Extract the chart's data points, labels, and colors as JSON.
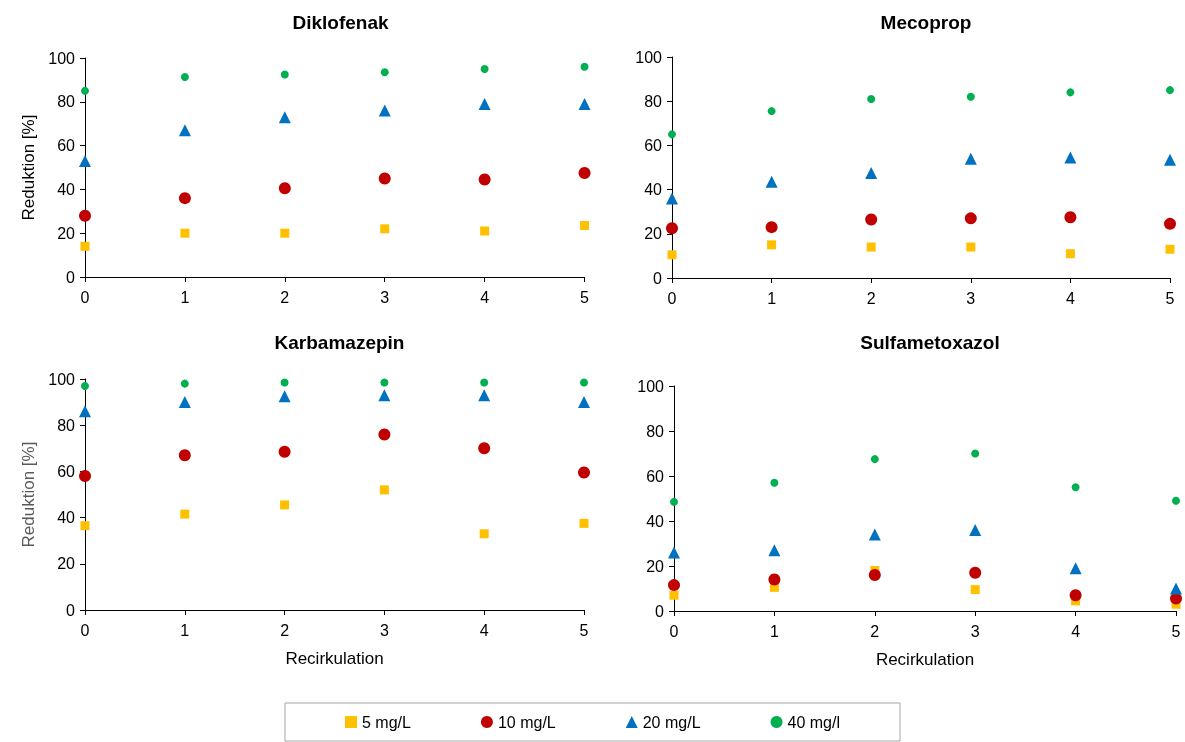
{
  "chart_data": [
    {
      "type": "scatter",
      "title": "Diklofenak",
      "ylabel": "Reduktion [%]",
      "x": [
        0,
        1,
        2,
        3,
        4,
        5
      ],
      "xlim": [
        0,
        5
      ],
      "xticks": [
        0,
        1,
        2,
        3,
        4,
        5
      ],
      "ylim": [
        0,
        100
      ],
      "yticks": [
        0,
        20,
        40,
        60,
        80,
        100
      ],
      "grid": false,
      "series": [
        {
          "color": "#ffc000",
          "marker": "square",
          "values": [
            14,
            20,
            20,
            22,
            21,
            23.5
          ]
        },
        {
          "color": "#c00000",
          "marker": "circle",
          "values": [
            28,
            36,
            40.5,
            45,
            44.5,
            47.5
          ]
        },
        {
          "color": "#0070c0",
          "marker": "triangle",
          "values": [
            53,
            67,
            73,
            76,
            79,
            79
          ]
        },
        {
          "color": "#00b050",
          "marker": "circle",
          "values": [
            85,
            91.3,
            92.5,
            93.5,
            95,
            96
          ]
        }
      ]
    },
    {
      "type": "scatter",
      "title": "Mecoprop",
      "x": [
        0,
        1,
        2,
        3,
        4,
        5
      ],
      "xlim": [
        0,
        5
      ],
      "xticks": [
        0,
        1,
        2,
        3,
        4,
        5
      ],
      "ylim": [
        0,
        100
      ],
      "yticks": [
        0,
        20,
        40,
        60,
        80,
        100
      ],
      "grid": false,
      "series": [
        {
          "color": "#ffc000",
          "marker": "square",
          "values": [
            10.5,
            15,
            14,
            14,
            11,
            13
          ]
        },
        {
          "color": "#c00000",
          "marker": "circle",
          "values": [
            22.5,
            23,
            26.5,
            27,
            27.5,
            24.5
          ]
        },
        {
          "color": "#0070c0",
          "marker": "triangle",
          "values": [
            36,
            43.5,
            47.5,
            54,
            54.5,
            53.5
          ]
        },
        {
          "color": "#00b050",
          "marker": "circle",
          "values": [
            65,
            75.5,
            81,
            82,
            84,
            85
          ]
        }
      ]
    },
    {
      "type": "scatter",
      "title": "Karbamazepin",
      "xlabel": "Recirkulation",
      "ylabel": "Reduktion [%]",
      "x": [
        0,
        1,
        2,
        3,
        4,
        5
      ],
      "xlim": [
        0,
        5
      ],
      "xticks": [
        0,
        1,
        2,
        3,
        4,
        5
      ],
      "ylim": [
        0,
        100
      ],
      "yticks": [
        0,
        20,
        40,
        60,
        80,
        100
      ],
      "grid": false,
      "legend": "bottom",
      "series": [
        {
          "name": "5 mg/L",
          "color": "#ffc000",
          "marker": "square",
          "values": [
            36.5,
            41.5,
            45.5,
            52,
            33,
            37.5
          ]
        },
        {
          "name": "10 mg/L",
          "color": "#c00000",
          "marker": "circle",
          "values": [
            58,
            67,
            68.5,
            76,
            70,
            59.5
          ]
        },
        {
          "name": "20 mg/L",
          "color": "#0070c0",
          "marker": "triangle",
          "values": [
            86,
            90,
            92.5,
            93,
            93,
            90
          ]
        },
        {
          "name": "40 mg/l",
          "color": "#00b050",
          "marker": "circle",
          "values": [
            97,
            98,
            98.5,
            98.5,
            98.5,
            98.5
          ]
        }
      ]
    },
    {
      "type": "scatter",
      "title": "Sulfametoxazol",
      "xlabel": "Recirkulation",
      "x": [
        0,
        1,
        2,
        3,
        4,
        5
      ],
      "xlim": [
        0,
        5
      ],
      "xticks": [
        0,
        1,
        2,
        3,
        4,
        5
      ],
      "ylim": [
        0,
        100
      ],
      "yticks": [
        0,
        20,
        40,
        60,
        80,
        100
      ],
      "grid": false,
      "series": [
        {
          "color": "#ffc000",
          "marker": "square",
          "values": [
            7,
            10.5,
            18,
            9.5,
            4.5,
            3
          ]
        },
        {
          "color": "#c00000",
          "marker": "circle",
          "values": [
            11.5,
            14,
            16,
            17,
            7,
            5.5
          ]
        },
        {
          "color": "#0070c0",
          "marker": "triangle",
          "values": [
            26,
            27,
            34,
            36,
            19,
            10
          ]
        },
        {
          "color": "#00b050",
          "marker": "circle",
          "values": [
            48.5,
            57,
            67.5,
            70,
            55,
            49
          ]
        }
      ]
    }
  ]
}
